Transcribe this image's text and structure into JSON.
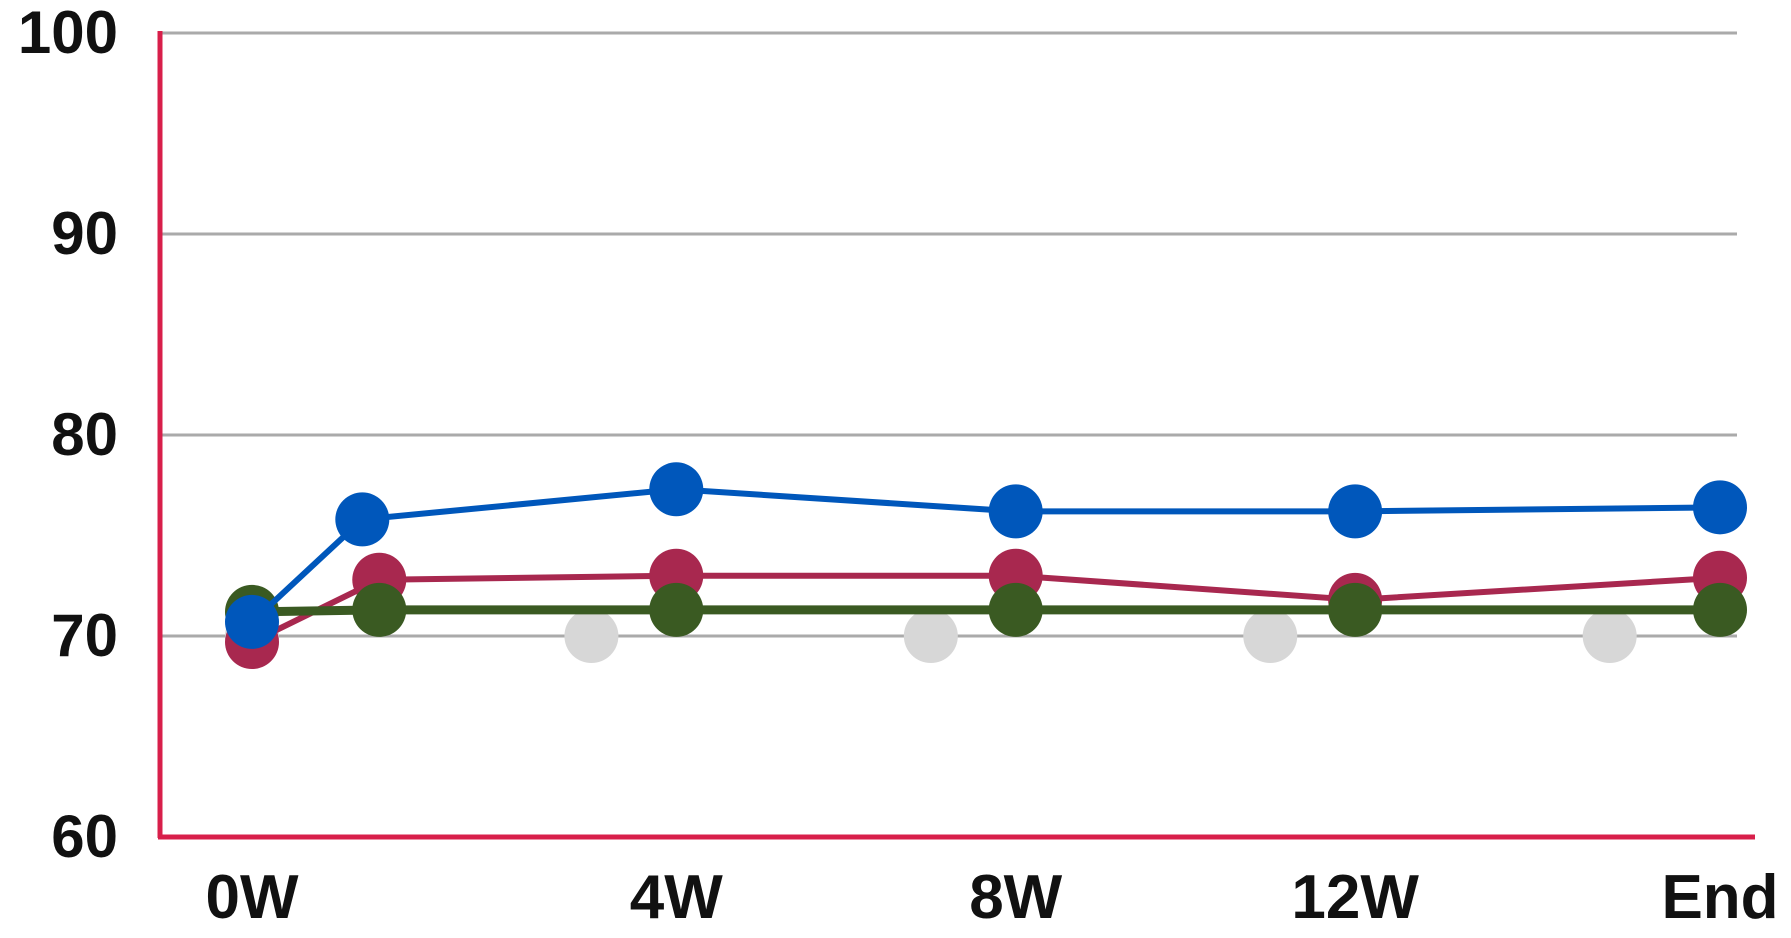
{
  "chart_data": {
    "type": "line",
    "title": "",
    "xlabel": "",
    "ylabel": "",
    "x_tick_labels": [
      "0W",
      "4W",
      "8W",
      "12W",
      "End"
    ],
    "y_tick_labels": [
      "60",
      "70",
      "80",
      "90",
      "100"
    ],
    "ylim": [
      60,
      100
    ],
    "grid": true,
    "legend": "none",
    "axis_color": "#d81f4a",
    "grid_color": "#aaaaaa",
    "series": [
      {
        "color": "#d7d7d7",
        "line": false,
        "points": [
          [
            0,
            70
          ],
          [
            4,
            70
          ],
          [
            8,
            70
          ],
          [
            12,
            70
          ],
          [
            16,
            70
          ]
        ]
      },
      {
        "color": "#a8284f",
        "line": true,
        "points": [
          [
            0,
            69.7
          ],
          [
            1.5,
            72.8
          ],
          [
            5,
            73.0
          ],
          [
            9,
            73.0
          ],
          [
            13,
            71.8
          ],
          [
            17.3,
            72.9
          ]
        ]
      },
      {
        "color": "#3a5a22",
        "line": true,
        "points": [
          [
            0,
            71.2
          ],
          [
            1.5,
            71.3
          ],
          [
            5,
            71.3
          ],
          [
            9,
            71.3
          ],
          [
            13,
            71.3
          ],
          [
            17.3,
            71.3
          ]
        ]
      },
      {
        "color": "#0057bb",
        "line": true,
        "points": [
          [
            0,
            70.7
          ],
          [
            1.3,
            75.8
          ],
          [
            5,
            77.3
          ],
          [
            9,
            76.2
          ],
          [
            13,
            76.2
          ],
          [
            17.3,
            76.4
          ]
        ]
      }
    ]
  }
}
